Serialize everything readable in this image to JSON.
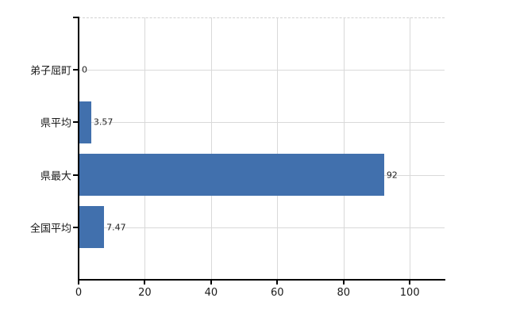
{
  "chart_data": {
    "type": "bar",
    "orientation": "horizontal",
    "title": "",
    "xlabel": "",
    "ylabel": "",
    "categories": [
      "弟子屈町",
      "県平均",
      "県最大",
      "全国平均"
    ],
    "values": [
      0,
      3.57,
      92,
      7.47
    ],
    "value_labels": [
      "0",
      "3.57",
      "92",
      "7.47"
    ],
    "x_ticks": [
      0,
      20,
      40,
      60,
      80,
      100
    ],
    "x_tick_labels": [
      "0",
      "20",
      "40",
      "60",
      "80",
      "100"
    ],
    "xlim": [
      0,
      110.5
    ],
    "grid": true,
    "legend": false,
    "colors": {
      "bar": "#4170ad",
      "grid": "#d9d9d9",
      "axis": "#000000",
      "text": "#1a1a1a",
      "background": "#ffffff"
    }
  }
}
